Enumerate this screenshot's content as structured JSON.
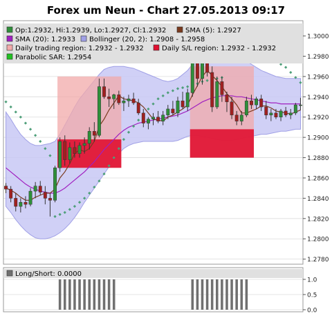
{
  "title": "Forex um Neun - Chart 27.05.2013 09:17",
  "colors": {
    "background": "#ffffff",
    "plot_border": "#999999",
    "grid": "#dcdcdc",
    "up_candle": "#2f8f3a",
    "down_candle": "#a02020",
    "candle_wick": "#333333",
    "sma5": "#7a3a1e",
    "sma20": "#a020c0",
    "bollinger_fill": "#c8c8f5",
    "bollinger_edge": "#a0a0e6",
    "trading_region": "#f2aaaa",
    "sl_region": "#e01030",
    "sar": "#4f9f7a",
    "legend_bg": "#e0e0e0",
    "long_short_bar": "#707070"
  },
  "legend": {
    "ohlc": "Op:1.2932, Hi:1.2939, Lo:1.2927, Cl:1.2932",
    "sma5": "SMA (5): 1.2927",
    "sma20": "SMA (20): 1.2933",
    "bollinger": "Bollinger (20, 2): 1.2908 - 1.2958",
    "trading_region": "Daily trading region: 1.2932 - 1.2932",
    "sl_region": "Daily S/L region: 1.2932 - 1.2932",
    "sar": "Parabolic SAR: 1.2954"
  },
  "long_short_label": "Long/Short: 0.0000",
  "chart_data": [
    {
      "type": "candlestick",
      "title": "Forex um Neun - Chart 27.05.2013 09:17",
      "ylim": [
        1.2775,
        1.3015
      ],
      "yticks": [
        "1.2780",
        "1.2800",
        "1.2820",
        "1.2840",
        "1.2860",
        "1.2880",
        "1.2900",
        "1.2920",
        "1.2940",
        "1.2960",
        "1.2980",
        "1.3000"
      ],
      "grid": true,
      "candles": [
        {
          "o": 1.2852,
          "h": 1.2855,
          "l": 1.2845,
          "c": 1.2849
        },
        {
          "o": 1.2849,
          "h": 1.2852,
          "l": 1.2836,
          "c": 1.284
        },
        {
          "o": 1.284,
          "h": 1.2845,
          "l": 1.2827,
          "c": 1.2832
        },
        {
          "o": 1.2832,
          "h": 1.284,
          "l": 1.2826,
          "c": 1.2836
        },
        {
          "o": 1.2836,
          "h": 1.2842,
          "l": 1.283,
          "c": 1.2834
        },
        {
          "o": 1.2834,
          "h": 1.285,
          "l": 1.2832,
          "c": 1.2847
        },
        {
          "o": 1.2847,
          "h": 1.2856,
          "l": 1.284,
          "c": 1.2852
        },
        {
          "o": 1.2852,
          "h": 1.2857,
          "l": 1.2843,
          "c": 1.2846
        },
        {
          "o": 1.2846,
          "h": 1.2852,
          "l": 1.2834,
          "c": 1.284
        },
        {
          "o": 1.284,
          "h": 1.2845,
          "l": 1.2822,
          "c": 1.2838
        },
        {
          "o": 1.2838,
          "h": 1.2872,
          "l": 1.2836,
          "c": 1.287
        },
        {
          "o": 1.287,
          "h": 1.29,
          "l": 1.2866,
          "c": 1.2896
        },
        {
          "o": 1.2896,
          "h": 1.2902,
          "l": 1.2872,
          "c": 1.2878
        },
        {
          "o": 1.2878,
          "h": 1.2895,
          "l": 1.2874,
          "c": 1.289
        },
        {
          "o": 1.289,
          "h": 1.2896,
          "l": 1.288,
          "c": 1.2884
        },
        {
          "o": 1.2884,
          "h": 1.2895,
          "l": 1.288,
          "c": 1.2892
        },
        {
          "o": 1.2892,
          "h": 1.29,
          "l": 1.2884,
          "c": 1.2894
        },
        {
          "o": 1.2894,
          "h": 1.291,
          "l": 1.2888,
          "c": 1.2906
        },
        {
          "o": 1.2906,
          "h": 1.2915,
          "l": 1.2896,
          "c": 1.2902
        },
        {
          "o": 1.2902,
          "h": 1.2958,
          "l": 1.29,
          "c": 1.295
        },
        {
          "o": 1.295,
          "h": 1.2958,
          "l": 1.2938,
          "c": 1.294
        },
        {
          "o": 1.294,
          "h": 1.2948,
          "l": 1.293,
          "c": 1.2938
        },
        {
          "o": 1.2938,
          "h": 1.2943,
          "l": 1.2928,
          "c": 1.2942
        },
        {
          "o": 1.2942,
          "h": 1.2946,
          "l": 1.2932,
          "c": 1.2934
        },
        {
          "o": 1.2934,
          "h": 1.294,
          "l": 1.2926,
          "c": 1.2936
        },
        {
          "o": 1.2936,
          "h": 1.2942,
          "l": 1.293,
          "c": 1.2938
        },
        {
          "o": 1.2938,
          "h": 1.2944,
          "l": 1.2932,
          "c": 1.2934
        },
        {
          "o": 1.2934,
          "h": 1.2938,
          "l": 1.2922,
          "c": 1.2924
        },
        {
          "o": 1.2924,
          "h": 1.2928,
          "l": 1.291,
          "c": 1.2914
        },
        {
          "o": 1.2914,
          "h": 1.292,
          "l": 1.2908,
          "c": 1.2918
        },
        {
          "o": 1.2918,
          "h": 1.2924,
          "l": 1.2912,
          "c": 1.292
        },
        {
          "o": 1.292,
          "h": 1.2926,
          "l": 1.2914,
          "c": 1.2916
        },
        {
          "o": 1.2916,
          "h": 1.2926,
          "l": 1.2912,
          "c": 1.2922
        },
        {
          "o": 1.2922,
          "h": 1.2932,
          "l": 1.2918,
          "c": 1.2928
        },
        {
          "o": 1.2928,
          "h": 1.2936,
          "l": 1.2922,
          "c": 1.2924
        },
        {
          "o": 1.2924,
          "h": 1.294,
          "l": 1.292,
          "c": 1.2936
        },
        {
          "o": 1.2936,
          "h": 1.2945,
          "l": 1.2928,
          "c": 1.293
        },
        {
          "o": 1.293,
          "h": 1.2948,
          "l": 1.2926,
          "c": 1.2944
        },
        {
          "o": 1.2944,
          "h": 1.2985,
          "l": 1.294,
          "c": 1.298
        },
        {
          "o": 1.298,
          "h": 1.2986,
          "l": 1.295,
          "c": 1.2958
        },
        {
          "o": 1.2958,
          "h": 1.2984,
          "l": 1.2952,
          "c": 1.2975
        },
        {
          "o": 1.2975,
          "h": 1.298,
          "l": 1.296,
          "c": 1.2964
        },
        {
          "o": 1.2964,
          "h": 1.297,
          "l": 1.2925,
          "c": 1.293
        },
        {
          "o": 1.293,
          "h": 1.296,
          "l": 1.2928,
          "c": 1.2955
        },
        {
          "o": 1.2955,
          "h": 1.296,
          "l": 1.2935,
          "c": 1.2942
        },
        {
          "o": 1.2942,
          "h": 1.2945,
          "l": 1.2925,
          "c": 1.2935
        },
        {
          "o": 1.2935,
          "h": 1.294,
          "l": 1.2918,
          "c": 1.2922
        },
        {
          "o": 1.2922,
          "h": 1.2926,
          "l": 1.2912,
          "c": 1.2916
        },
        {
          "o": 1.2916,
          "h": 1.2926,
          "l": 1.2912,
          "c": 1.2922
        },
        {
          "o": 1.2922,
          "h": 1.294,
          "l": 1.292,
          "c": 1.2936
        },
        {
          "o": 1.2936,
          "h": 1.2942,
          "l": 1.2928,
          "c": 1.2932
        },
        {
          "o": 1.2932,
          "h": 1.294,
          "l": 1.2928,
          "c": 1.2938
        },
        {
          "o": 1.2938,
          "h": 1.2942,
          "l": 1.2926,
          "c": 1.293
        },
        {
          "o": 1.293,
          "h": 1.2936,
          "l": 1.2918,
          "c": 1.2922
        },
        {
          "o": 1.2922,
          "h": 1.2928,
          "l": 1.2916,
          "c": 1.2924
        },
        {
          "o": 1.2924,
          "h": 1.2928,
          "l": 1.2918,
          "c": 1.292
        },
        {
          "o": 1.292,
          "h": 1.2928,
          "l": 1.2916,
          "c": 1.2926
        },
        {
          "o": 1.2926,
          "h": 1.293,
          "l": 1.292,
          "c": 1.2922
        },
        {
          "o": 1.2922,
          "h": 1.2928,
          "l": 1.2918,
          "c": 1.2924
        },
        {
          "o": 1.2924,
          "h": 1.2934,
          "l": 1.2922,
          "c": 1.2932
        },
        {
          "o": 1.2932,
          "h": 1.2939,
          "l": 1.2927,
          "c": 1.2932
        }
      ],
      "sma5": [
        1.285,
        1.2848,
        1.2845,
        1.2841,
        1.2838,
        1.2838,
        1.2841,
        1.2843,
        1.2845,
        1.2845,
        1.2849,
        1.286,
        1.2866,
        1.2874,
        1.2884,
        1.2888,
        1.2886,
        1.2889,
        1.2896,
        1.2911,
        1.2918,
        1.2927,
        1.2934,
        1.2941,
        1.2938,
        1.2937,
        1.2936,
        1.2934,
        1.293,
        1.2924,
        1.2918,
        1.2917,
        1.2916,
        1.292,
        1.2922,
        1.2925,
        1.2928,
        1.2932,
        1.2942,
        1.2951,
        1.296,
        1.2966,
        1.2961,
        1.2956,
        1.295,
        1.2943,
        1.2938,
        1.2932,
        1.2924,
        1.2924,
        1.2926,
        1.2928,
        1.2931,
        1.2931,
        1.2929,
        1.2926,
        1.2925,
        1.2924,
        1.2923,
        1.2925,
        1.2927
      ],
      "sma20": [
        1.287,
        1.2866,
        1.2862,
        1.2858,
        1.2854,
        1.2851,
        1.2849,
        1.2847,
        1.2846,
        1.2845,
        1.2845,
        1.2847,
        1.285,
        1.2854,
        1.2858,
        1.2862,
        1.2866,
        1.2871,
        1.2876,
        1.2882,
        1.2888,
        1.2893,
        1.2898,
        1.2903,
        1.2907,
        1.291,
        1.2912,
        1.2914,
        1.2915,
        1.2916,
        1.2917,
        1.2918,
        1.2919,
        1.292,
        1.2921,
        1.2922,
        1.2924,
        1.2926,
        1.2929,
        1.2932,
        1.2935,
        1.2937,
        1.2939,
        1.294,
        1.2941,
        1.2941,
        1.2941,
        1.294,
        1.294,
        1.2939,
        1.2938,
        1.2937,
        1.2936,
        1.2935,
        1.2934,
        1.2934,
        1.2933,
        1.2933,
        1.2933,
        1.2933,
        1.2933
      ],
      "bollinger_upper": [
        1.2925,
        1.2918,
        1.291,
        1.2903,
        1.2898,
        1.2894,
        1.2892,
        1.2892,
        1.2893,
        1.2894,
        1.2896,
        1.2903,
        1.2912,
        1.2921,
        1.293,
        1.2938,
        1.2944,
        1.295,
        1.2956,
        1.2962,
        1.2967,
        1.2969,
        1.297,
        1.297,
        1.297,
        1.2969,
        1.2968,
        1.2966,
        1.2964,
        1.2962,
        1.296,
        1.2958,
        1.2956,
        1.2955,
        1.2956,
        1.2958,
        1.2962,
        1.2966,
        1.2972,
        1.2978,
        1.2982,
        1.2985,
        1.2986,
        1.2986,
        1.2985,
        1.2984,
        1.2982,
        1.298,
        1.2978,
        1.2975,
        1.2972,
        1.2969,
        1.2966,
        1.2964,
        1.2962,
        1.296,
        1.2959,
        1.2958,
        1.2958,
        1.2958,
        1.2958
      ],
      "bollinger_lower": [
        1.2832,
        1.2826,
        1.2819,
        1.2813,
        1.2808,
        1.2804,
        1.2801,
        1.28,
        1.28,
        1.2801,
        1.2803,
        1.2806,
        1.281,
        1.2815,
        1.2821,
        1.2828,
        1.2836,
        1.2843,
        1.285,
        1.2857,
        1.2864,
        1.2871,
        1.2878,
        1.2884,
        1.2889,
        1.2892,
        1.2894,
        1.2895,
        1.2896,
        1.2896,
        1.2896,
        1.2896,
        1.2896,
        1.2896,
        1.2896,
        1.2897,
        1.2899,
        1.2901,
        1.2902,
        1.2902,
        1.2901,
        1.29,
        1.2899,
        1.2898,
        1.2897,
        1.2897,
        1.2897,
        1.2898,
        1.2899,
        1.29,
        1.2901,
        1.2902,
        1.2903,
        1.2903,
        1.2904,
        1.2905,
        1.2906,
        1.2906,
        1.2907,
        1.2908,
        1.2908
      ],
      "sar": [
        1.2935,
        1.293,
        1.2925,
        1.292,
        1.2914,
        1.2908,
        1.2902,
        1.2896,
        1.2889,
        1.2882,
        1.2822,
        1.2824,
        1.2826,
        1.2829,
        1.2832,
        1.2836,
        1.284,
        1.2845,
        1.2851,
        1.2857,
        1.2864,
        1.2872,
        1.288,
        1.2889,
        1.2898,
        1.2905,
        1.2911,
        1.2917,
        1.2922,
        1.2928,
        1.2933,
        1.2938,
        1.2941,
        1.2944,
        1.2946,
        1.2948,
        1.2949,
        1.295,
        1.2952,
        1.2953,
        1.2955,
        1.2956,
        1.2957,
        1.2958,
        1.2959,
        1.2995,
        1.2993,
        1.2991,
        1.2989,
        1.2987,
        1.2985,
        1.2983,
        1.2981,
        1.2979,
        1.2977,
        1.2975,
        1.2972,
        1.2969,
        1.2964,
        1.2959,
        1.2954
      ],
      "trading_regions": [
        {
          "from": 11,
          "to": 23,
          "low": 1.287,
          "high": 1.296
        },
        {
          "from": 38,
          "to": 50,
          "low": 1.288,
          "high": 1.297
        }
      ],
      "sl_regions": [
        {
          "from": 11,
          "to": 23,
          "low": 1.287,
          "high": 1.2898
        },
        {
          "from": 38,
          "to": 50,
          "low": 1.288,
          "high": 1.2908
        }
      ]
    },
    {
      "type": "bar",
      "title": "Long/Short: 0.0000",
      "ylim": [
        0,
        1
      ],
      "yticks": [
        "0.0",
        "0.5",
        "1.0"
      ],
      "values": [
        0,
        0,
        0,
        0,
        0,
        0,
        0,
        0,
        0,
        0,
        0,
        1,
        1,
        1,
        1,
        1,
        1,
        1,
        1,
        1,
        1,
        1,
        1,
        0,
        0,
        0,
        0,
        0,
        0,
        0,
        0,
        0,
        0,
        0,
        0,
        0,
        0,
        0,
        1,
        1,
        1,
        1,
        1,
        1,
        1,
        1,
        1,
        1,
        1,
        1,
        0,
        0,
        0,
        0,
        0,
        0,
        0,
        0,
        0,
        0,
        0
      ]
    }
  ]
}
